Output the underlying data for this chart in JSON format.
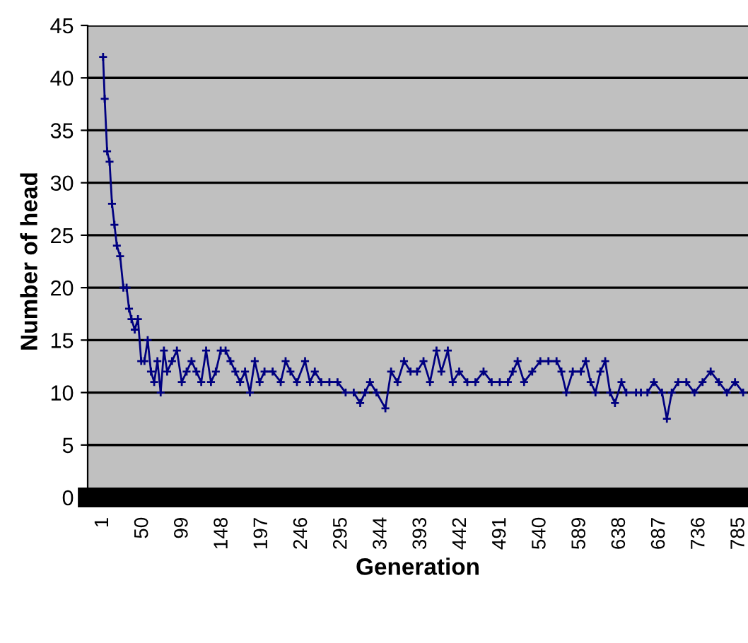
{
  "chart_data": {
    "type": "line",
    "xlabel": "Generation",
    "ylabel": "Number of head",
    "xlim": [
      -18,
      796
    ],
    "xticks": [
      1,
      50,
      99,
      148,
      197,
      246,
      295,
      344,
      393,
      442,
      491,
      540,
      589,
      638,
      687,
      736,
      785
    ],
    "ylim": [
      0,
      45
    ],
    "yticks": [
      0,
      5,
      10,
      15,
      20,
      25,
      30,
      35,
      40,
      45
    ],
    "grid": "y",
    "marker": "cross",
    "line_style": "solid",
    "series": [
      {
        "color": "#000080",
        "x": [
          1,
          3,
          6,
          9,
          12,
          15,
          18,
          22,
          26,
          30,
          33,
          36,
          40,
          44,
          48,
          52,
          56,
          60,
          64,
          68,
          72,
          76,
          80,
          86,
          92,
          98,
          104,
          110,
          116,
          122,
          128,
          134,
          140,
          146,
          152,
          158,
          164,
          170,
          176,
          182,
          188,
          194,
          200,
          210,
          220,
          226,
          232,
          240,
          250,
          256,
          262,
          270,
          280,
          290,
          300,
          310,
          318,
          324,
          330,
          338,
          349,
          356,
          364,
          372,
          380,
          388,
          396,
          404,
          412,
          418,
          426,
          432,
          440,
          450,
          460,
          470,
          480,
          490,
          500,
          506,
          512,
          520,
          530,
          540,
          550,
          560,
          566,
          572,
          580,
          590,
          596,
          602,
          608,
          614,
          620,
          626,
          632,
          640,
          646,
          658,
          664,
          672,
          680,
          690,
          696,
          702,
          710,
          720,
          730,
          740,
          750,
          760,
          770,
          780,
          790
        ],
        "values": [
          42,
          38,
          33,
          32,
          28,
          26,
          24,
          23,
          20,
          20,
          18,
          17,
          16,
          17,
          13,
          13,
          15,
          12,
          11,
          13,
          10,
          14,
          12,
          13,
          14,
          11,
          12,
          13,
          12,
          11,
          14,
          11,
          12,
          14,
          14,
          13,
          12,
          11,
          12,
          10,
          13,
          11,
          12,
          12,
          11,
          13,
          12,
          11,
          13,
          11,
          12,
          11,
          11,
          11,
          10,
          10,
          9,
          10,
          11,
          10,
          8.5,
          12,
          11,
          13,
          12,
          12,
          13,
          11,
          14,
          12,
          14,
          11,
          12,
          11,
          11,
          12,
          11,
          11,
          11,
          12,
          13,
          11,
          12,
          13,
          13,
          13,
          12,
          10,
          12,
          12,
          13,
          11,
          10,
          12,
          13,
          10,
          9,
          11,
          10,
          10,
          10,
          10,
          11,
          10,
          7.5,
          10,
          11,
          11,
          10,
          11,
          12,
          11,
          10,
          11,
          10
        ]
      }
    ]
  }
}
